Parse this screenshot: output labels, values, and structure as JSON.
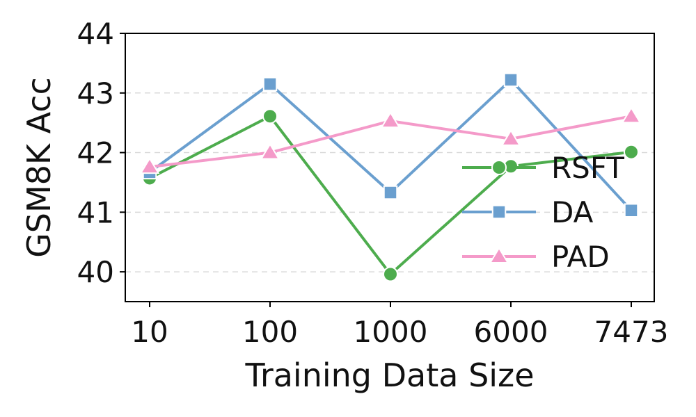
{
  "chart_data": {
    "type": "line",
    "title": "",
    "xlabel": "Training Data Size",
    "ylabel": "GSM8K Acc",
    "categories": [
      "10",
      "100",
      "1000",
      "6000",
      "7473"
    ],
    "ylim": [
      39.5,
      44
    ],
    "yticks": [
      "40",
      "41",
      "42",
      "43",
      "44"
    ],
    "grid": true,
    "legend_position": "right",
    "series": [
      {
        "name": "RSFT",
        "color": "#4dac4d",
        "marker": "circle",
        "values": [
          41.57,
          42.61,
          39.96,
          41.77,
          42.01
        ]
      },
      {
        "name": "DA",
        "color": "#6a9fcf",
        "marker": "square",
        "values": [
          41.67,
          43.15,
          41.33,
          43.22,
          41.03
        ]
      },
      {
        "name": "PAD",
        "color": "#f49ac9",
        "marker": "triangle",
        "values": [
          41.76,
          42.0,
          42.53,
          42.23,
          42.61
        ]
      }
    ]
  }
}
